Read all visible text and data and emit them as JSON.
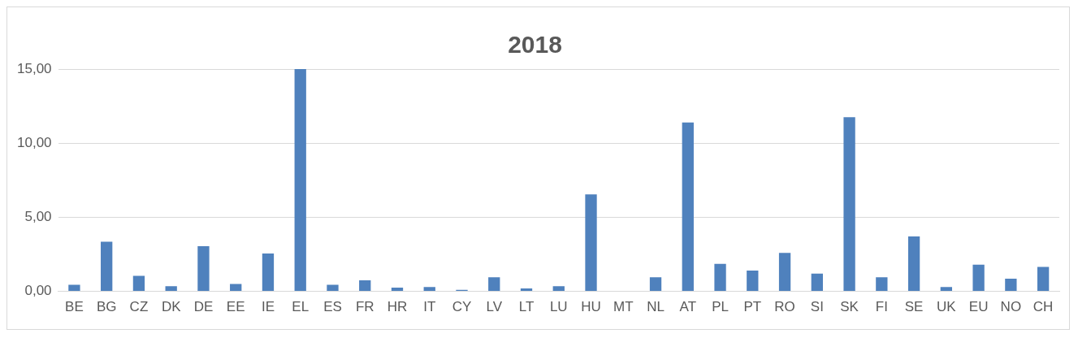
{
  "chart_data": {
    "type": "bar",
    "title": "2018",
    "categories": [
      "BE",
      "BG",
      "CZ",
      "DK",
      "DE",
      "EE",
      "IE",
      "EL",
      "ES",
      "FR",
      "HR",
      "IT",
      "CY",
      "LV",
      "LT",
      "LU",
      "HU",
      "MT",
      "NL",
      "AT",
      "PL",
      "PT",
      "RO",
      "SI",
      "SK",
      "FI",
      "SE",
      "UK",
      "EU",
      "NO",
      "CH"
    ],
    "values": [
      0.45,
      3.35,
      1.05,
      0.35,
      3.05,
      0.5,
      2.55,
      15,
      0.45,
      0.75,
      0.25,
      0.3,
      0.1,
      0.95,
      0.2,
      0.35,
      6.55,
      0,
      0.95,
      11.4,
      1.85,
      1.4,
      2.6,
      1.2,
      11.75,
      0.95,
      3.7,
      0.3,
      1.8,
      0.85,
      1.65
    ],
    "color": "#4f81bd",
    "ylim": [
      0,
      15
    ],
    "yticks": [
      {
        "value": 0,
        "label": "0,00"
      },
      {
        "value": 5,
        "label": "5,00"
      },
      {
        "value": 10,
        "label": "10,00"
      },
      {
        "value": 15,
        "label": "15,00"
      }
    ],
    "grid": "y"
  }
}
